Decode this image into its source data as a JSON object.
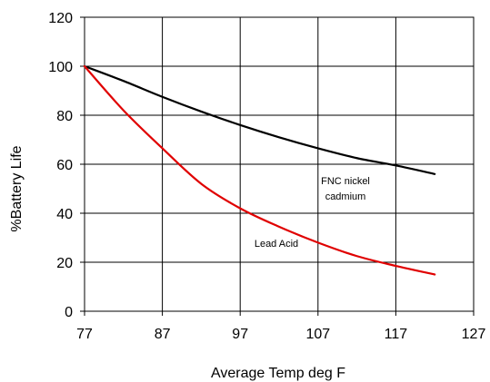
{
  "chart_data": {
    "type": "line",
    "xlabel": "Average Temp deg F",
    "ylabel": "%Battery Life",
    "xlim": [
      77,
      127
    ],
    "ylim": [
      0,
      120
    ],
    "x_ticks": [
      "77",
      "87",
      "97",
      "107",
      "117",
      "127"
    ],
    "y_ticks": [
      "0",
      "20",
      "40",
      "60",
      "80",
      "100",
      "120"
    ],
    "grid": true,
    "legend": "none",
    "series": [
      {
        "name": "FNC nickel cadmium",
        "color": "#000000",
        "x": [
          77,
          82,
          87,
          92,
          97,
          102,
          107,
          112,
          117,
          122
        ],
        "y": [
          100,
          94,
          87.5,
          81.5,
          76,
          71,
          66.5,
          62.5,
          59.5,
          56
        ]
      },
      {
        "name": "Lead Acid",
        "color": "#e00000",
        "x": [
          77,
          82,
          87,
          92,
          97,
          102,
          107,
          112,
          117,
          122
        ],
        "y": [
          100,
          82,
          66.5,
          52,
          42,
          34.5,
          28,
          22.5,
          18.5,
          15
        ]
      }
    ],
    "annotations": [
      {
        "lines": [
          "FNC nickel",
          "cadmium"
        ],
        "series": 0
      },
      {
        "lines": [
          "Lead Acid"
        ],
        "series": 1
      }
    ]
  }
}
